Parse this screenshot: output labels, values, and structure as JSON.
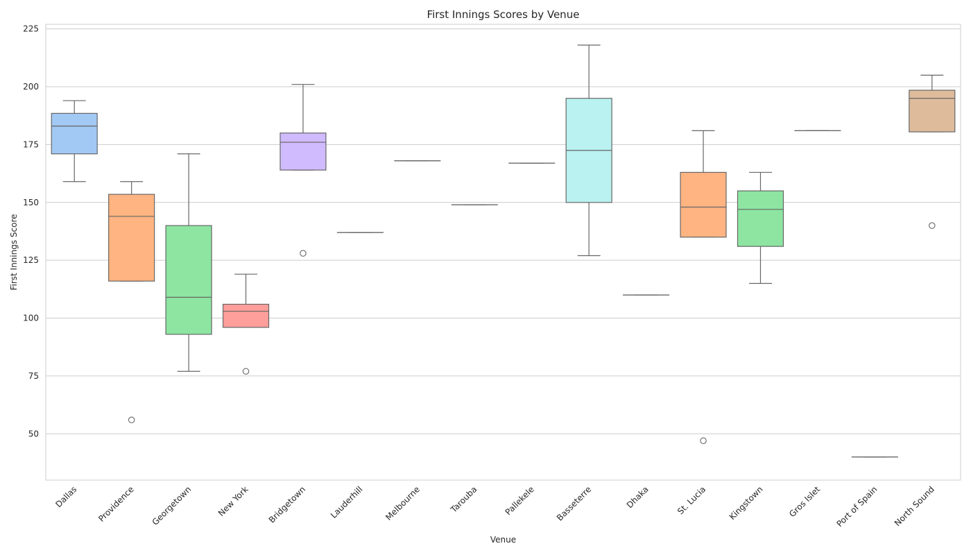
{
  "chart_data": {
    "type": "box",
    "title": "First Innings Scores by Venue",
    "xlabel": "Venue",
    "ylabel": "First Innings Score",
    "ylim": [
      30,
      227
    ],
    "yticks": [
      50,
      75,
      100,
      125,
      150,
      175,
      200,
      225
    ],
    "grid": "horizontal",
    "categories": [
      "Dallas",
      "Providence",
      "Georgetown",
      "New York",
      "Bridgetown",
      "Lauderhill",
      "Melbourne",
      "Tarouba",
      "Pallekele",
      "Basseterre",
      "Dhaka",
      "St. Lucia",
      "Kingstown",
      "Gros Islet",
      "Port of Spain",
      "North Sound"
    ],
    "boxes": [
      {
        "venue": "Dallas",
        "whisker_low": 159,
        "q1": 171,
        "median": 183,
        "q3": 188.5,
        "whisker_high": 194,
        "outliers": [],
        "color": "#a1c9f4"
      },
      {
        "venue": "Providence",
        "whisker_low": 116,
        "q1": 116,
        "median": 144,
        "q3": 153.5,
        "whisker_high": 159,
        "outliers": [
          56
        ],
        "color": "#ffb482"
      },
      {
        "venue": "Georgetown",
        "whisker_low": 77,
        "q1": 93,
        "median": 109,
        "q3": 140,
        "whisker_high": 171,
        "outliers": [],
        "color": "#8de5a1"
      },
      {
        "venue": "New York",
        "whisker_low": 96,
        "q1": 96,
        "median": 103,
        "q3": 106,
        "whisker_high": 119,
        "outliers": [
          77
        ],
        "color": "#ff9f9b"
      },
      {
        "venue": "Bridgetown",
        "whisker_low": 164,
        "q1": 164,
        "median": 176,
        "q3": 180,
        "whisker_high": 201,
        "outliers": [
          128
        ],
        "color": "#d0bbff"
      },
      {
        "venue": "Lauderhill",
        "whisker_low": 137,
        "q1": 137,
        "median": 137,
        "q3": 137,
        "whisker_high": 137,
        "outliers": [],
        "color": "#debb9b"
      },
      {
        "venue": "Melbourne",
        "whisker_low": 168,
        "q1": 168,
        "median": 168,
        "q3": 168,
        "whisker_high": 168,
        "outliers": [],
        "color": "#fab0e4"
      },
      {
        "venue": "Tarouba",
        "whisker_low": 149,
        "q1": 149,
        "median": 149,
        "q3": 149,
        "whisker_high": 149,
        "outliers": [],
        "color": "#cfcfcf"
      },
      {
        "venue": "Pallekele",
        "whisker_low": 167,
        "q1": 167,
        "median": 167,
        "q3": 167,
        "whisker_high": 167,
        "outliers": [],
        "color": "#fffea3"
      },
      {
        "venue": "Basseterre",
        "whisker_low": 127,
        "q1": 150,
        "median": 172.5,
        "q3": 195,
        "whisker_high": 218,
        "outliers": [],
        "color": "#b9f2f0"
      },
      {
        "venue": "Dhaka",
        "whisker_low": 110,
        "q1": 110,
        "median": 110,
        "q3": 110,
        "whisker_high": 110,
        "outliers": [],
        "color": "#a1c9f4"
      },
      {
        "venue": "St. Lucia",
        "whisker_low": 135,
        "q1": 135,
        "median": 148,
        "q3": 163,
        "whisker_high": 181,
        "outliers": [
          47
        ],
        "color": "#ffb482"
      },
      {
        "venue": "Kingstown",
        "whisker_low": 115,
        "q1": 131,
        "median": 147,
        "q3": 155,
        "whisker_high": 163,
        "outliers": [],
        "color": "#8de5a1"
      },
      {
        "venue": "Gros Islet",
        "whisker_low": 181,
        "q1": 181,
        "median": 181,
        "q3": 181,
        "whisker_high": 181,
        "outliers": [],
        "color": "#ff9f9b"
      },
      {
        "venue": "Port of Spain",
        "whisker_low": 40,
        "q1": 40,
        "median": 40,
        "q3": 40,
        "whisker_high": 40,
        "outliers": [],
        "color": "#d0bbff"
      },
      {
        "venue": "North Sound",
        "whisker_low": 180.5,
        "q1": 180.5,
        "median": 195,
        "q3": 198.5,
        "whisker_high": 205,
        "outliers": [
          140
        ],
        "color": "#debb9b"
      }
    ]
  }
}
